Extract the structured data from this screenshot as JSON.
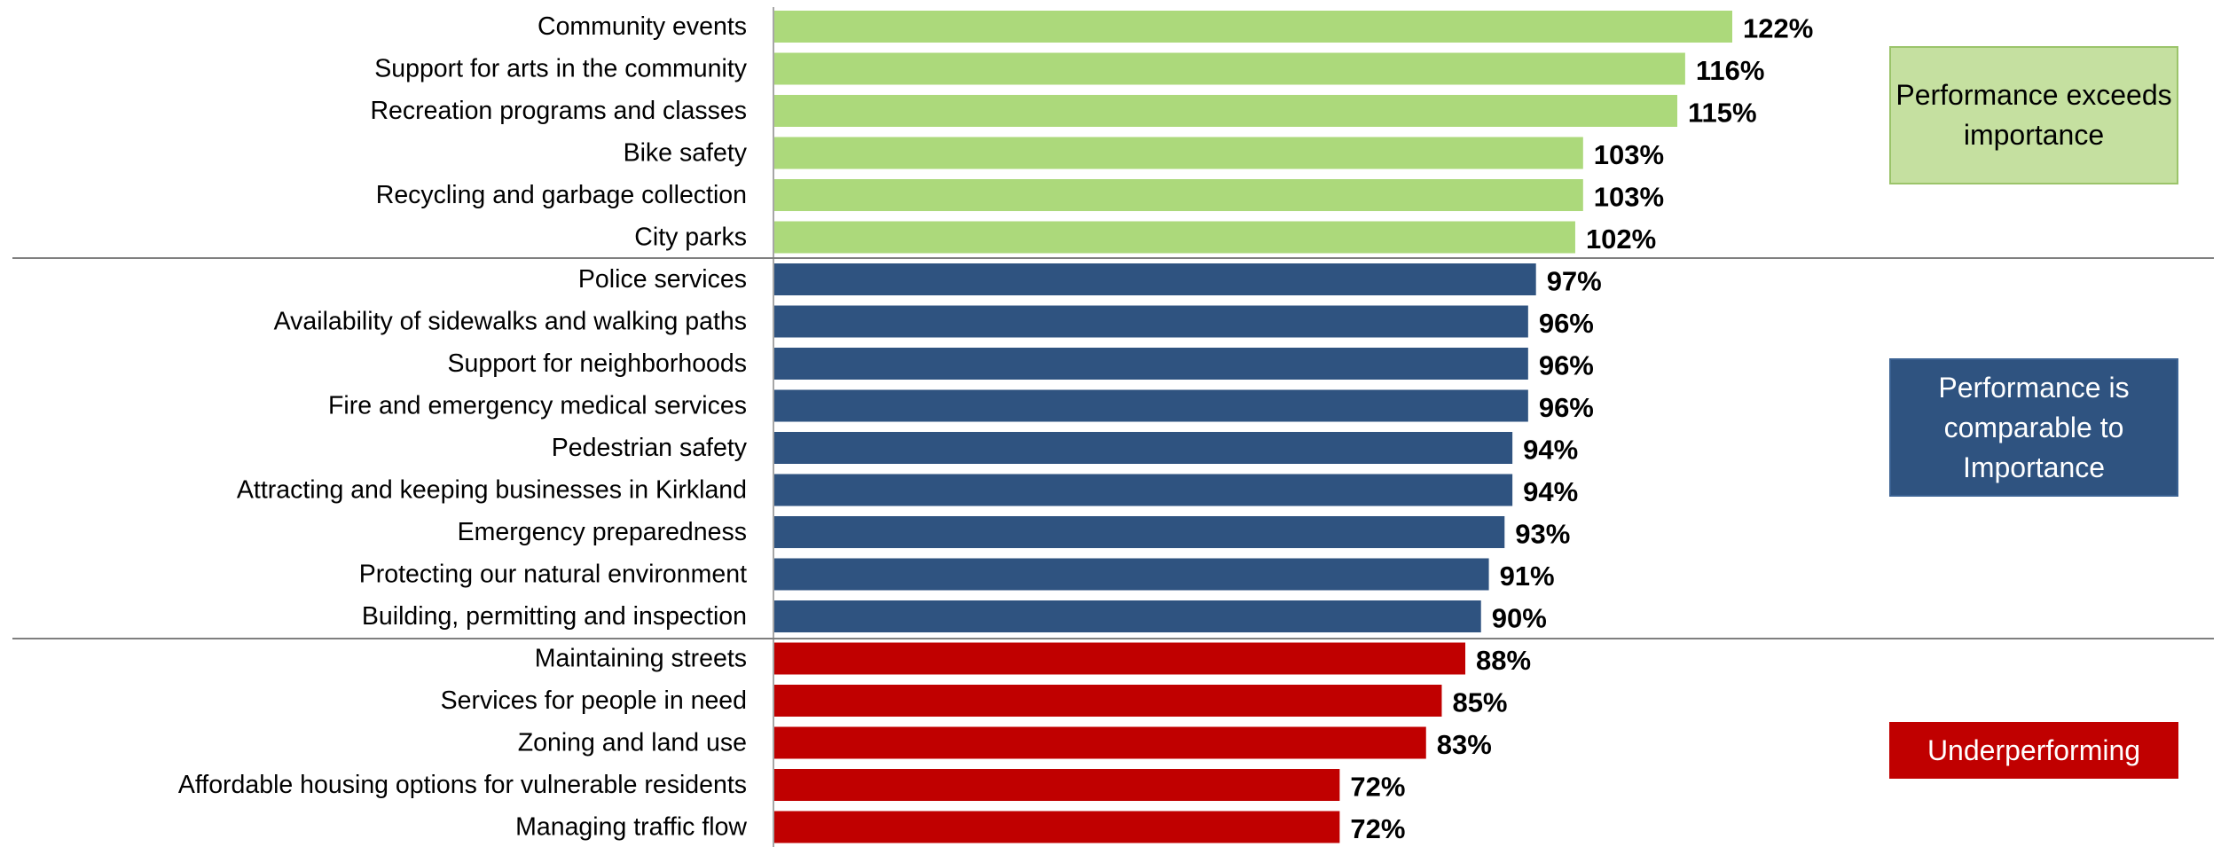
{
  "chart_data": {
    "type": "bar",
    "orientation": "horizontal",
    "categories": [
      "Community events",
      "Support for arts in the community",
      "Recreation programs and classes",
      "Bike safety",
      "Recycling and garbage collection",
      "City parks",
      "Police services",
      "Availability of sidewalks and walking paths",
      "Support for neighborhoods",
      "Fire and emergency medical services",
      "Pedestrian safety",
      "Attracting and keeping businesses in Kirkland",
      "Emergency preparedness",
      "Protecting our natural environment",
      "Building, permitting and inspection",
      "Maintaining streets",
      "Services for people in need",
      "Zoning and land use",
      "Affordable housing options for vulnerable residents",
      "Managing traffic flow"
    ],
    "values": [
      122,
      116,
      115,
      103,
      103,
      102,
      97,
      96,
      96,
      96,
      94,
      94,
      93,
      91,
      90,
      88,
      85,
      83,
      72,
      72
    ],
    "value_labels": [
      "122%",
      "116%",
      "115%",
      "103%",
      "103%",
      "102%",
      "97%",
      "96%",
      "96%",
      "96%",
      "94%",
      "94%",
      "93%",
      "91%",
      "90%",
      "88%",
      "85%",
      "83%",
      "72%",
      "72%"
    ],
    "groups": [
      0,
      0,
      0,
      0,
      0,
      0,
      1,
      1,
      1,
      1,
      1,
      1,
      1,
      1,
      1,
      2,
      2,
      2,
      2,
      2
    ],
    "group_colors": [
      "#acd97b",
      "#2f5380",
      "#c00000"
    ],
    "legend": [
      "Performance exceeds importance",
      "Performance is comparable to Importance",
      "Underperforming"
    ],
    "title": "",
    "xlabel": "",
    "ylabel": "",
    "xlim": [
      0,
      122
    ],
    "grid": false,
    "legend_position": "right"
  }
}
